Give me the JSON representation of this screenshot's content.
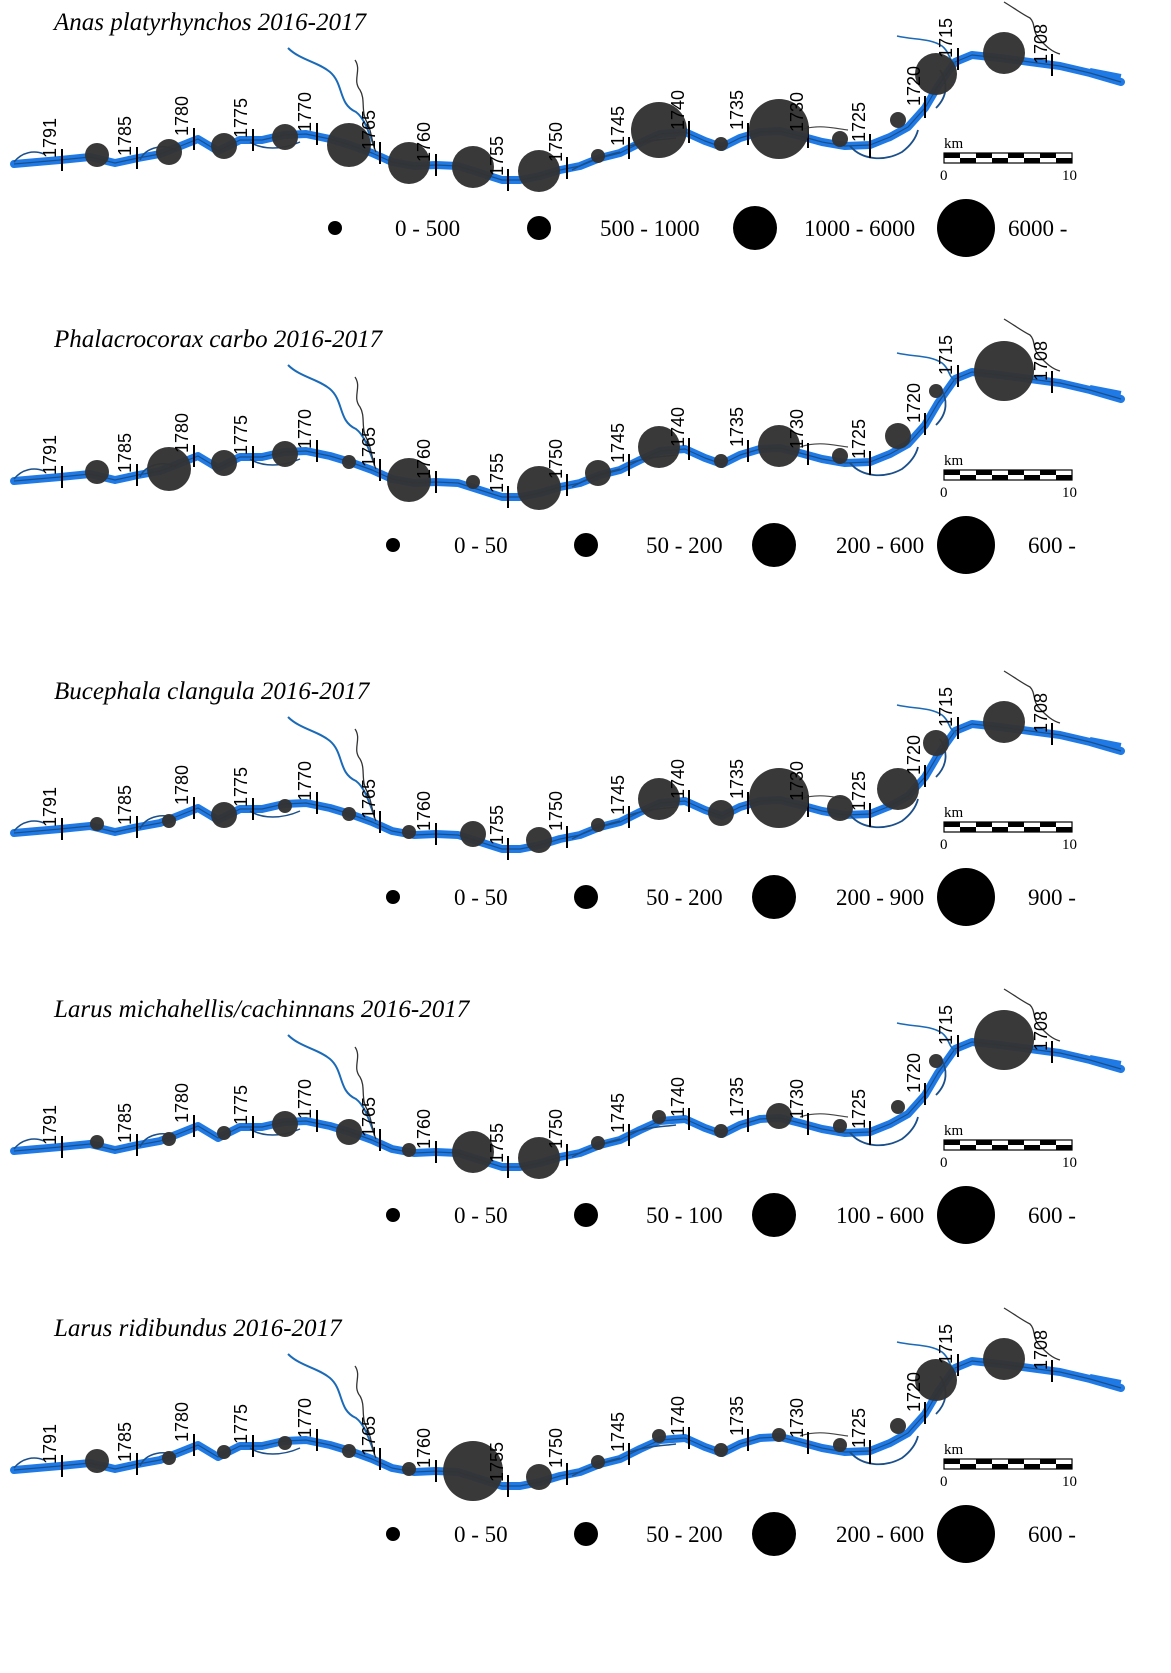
{
  "figure": {
    "panels": [
      {
        "title": "Anas platyrhynchos 2016-2017",
        "legend": [
          {
            "label": "0 - 500",
            "size": 1
          },
          {
            "label": "500 - 1000",
            "size": 2
          },
          {
            "label": "1000 - 6000",
            "size": 3
          },
          {
            "label": "6000 -",
            "size": 4
          }
        ]
      },
      {
        "title": "Phalacrocorax carbo 2016-2017",
        "legend": [
          {
            "label": "0 - 50",
            "size": 1
          },
          {
            "label": "50 - 200",
            "size": 2
          },
          {
            "label": "200 - 600",
            "size": 3
          },
          {
            "label": "600 -",
            "size": 4
          }
        ]
      },
      {
        "title": "Bucephala clangula 2016-2017",
        "legend": [
          {
            "label": "0 - 50",
            "size": 1
          },
          {
            "label": "50 - 200",
            "size": 2
          },
          {
            "label": "200 - 900",
            "size": 3
          },
          {
            "label": "900 -",
            "size": 4
          }
        ]
      },
      {
        "title": "Larus michahellis/cachinnans 2016-2017",
        "legend": [
          {
            "label": "0 - 50",
            "size": 1
          },
          {
            "label": "50 - 100",
            "size": 2
          },
          {
            "label": "100 - 600",
            "size": 3
          },
          {
            "label": "600 -",
            "size": 4
          }
        ]
      },
      {
        "title": "Larus ridibundus 2016-2017",
        "legend": [
          {
            "label": "0 - 50",
            "size": 1
          },
          {
            "label": "50 - 200",
            "size": 2
          },
          {
            "label": "200 - 600",
            "size": 3
          },
          {
            "label": "600 -",
            "size": 4
          }
        ]
      }
    ],
    "river_km_labels": [
      "1791",
      "1785",
      "1780",
      "1775",
      "1770",
      "1765",
      "1760",
      "1755",
      "1750",
      "1745",
      "1740",
      "1735",
      "1730",
      "1725",
      "1720",
      "1715",
      "1708"
    ],
    "scale_bar": {
      "unit": "km",
      "start": "0",
      "end": "10"
    },
    "colors": {
      "river": "#1f7ae6",
      "river_outline": "#1b4f8a",
      "bubble_fill": "#333333",
      "legend_symbol": "#000000",
      "text": "#000000"
    }
  }
}
